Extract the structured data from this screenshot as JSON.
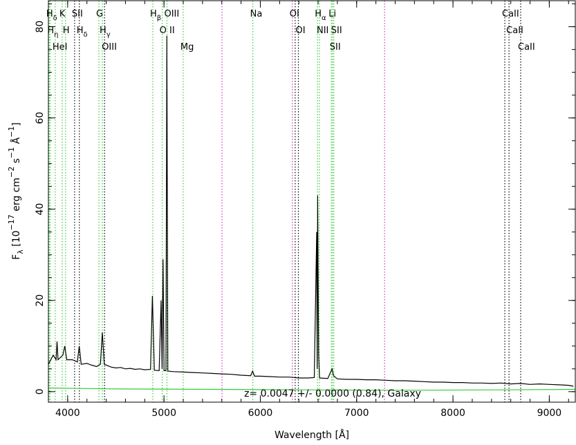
{
  "chart_data": {
    "type": "line",
    "xlabel": [
      "Wavelength ",
      "[Å]"
    ],
    "ylabel": [
      {
        "text": "F"
      },
      {
        "text": "λ",
        "shift": "sub"
      },
      {
        "text": " [10"
      },
      {
        "text": "−17",
        "shift": "sup"
      },
      {
        "text": " erg cm"
      },
      {
        "text": "−2",
        "shift": "sup"
      },
      {
        "text": " s"
      },
      {
        "text": "−1",
        "shift": "sup"
      },
      {
        "text": " Å"
      },
      {
        "text": "−1",
        "shift": "sup"
      },
      {
        "text": "]"
      }
    ],
    "annotation": "z= 0.0047 +/- 0.0000 (0.84), Galaxy",
    "xlim": [
      3800,
      9270
    ],
    "ylim": [
      -2.3,
      85.7
    ],
    "xticks": [
      4000,
      5000,
      6000,
      7000,
      8000,
      9000
    ],
    "yticks": [
      0,
      20,
      40,
      60,
      80
    ],
    "series": [
      {
        "name": "flux",
        "color": "#000000",
        "x": [
          3800,
          3850,
          3880,
          3890,
          3900,
          3950,
          3970,
          3990,
          4050,
          4100,
          4120,
          4140,
          4200,
          4250,
          4300,
          4340,
          4360,
          4380,
          4450,
          4500,
          4550,
          4600,
          4650,
          4700,
          4750,
          4800,
          4860,
          4880,
          4900,
          4950,
          4970,
          4980,
          4990,
          5000,
          5020,
          5030,
          5040,
          5100,
          5200,
          5300,
          5400,
          5500,
          5600,
          5700,
          5800,
          5900,
          5920,
          5940,
          6000,
          6100,
          6200,
          6300,
          6400,
          6500,
          6560,
          6585,
          6590,
          6595,
          6605,
          6615,
          6700,
          6745,
          6760,
          6800,
          6900,
          7000,
          7100,
          7200,
          7300,
          7400,
          7500,
          7600,
          7700,
          7800,
          7900,
          8000,
          8100,
          8200,
          8300,
          8400,
          8500,
          8600,
          8700,
          8800,
          8900,
          9000,
          9100,
          9200,
          9250
        ],
        "values": [
          6,
          8,
          7,
          11,
          7,
          8,
          10,
          7,
          7,
          6.5,
          10,
          6,
          6.2,
          5.8,
          5.5,
          6,
          13,
          6,
          5.4,
          5.2,
          5.3,
          5,
          5.1,
          4.9,
          5,
          4.8,
          4.9,
          21,
          4.7,
          4.6,
          20,
          5,
          29,
          4.6,
          4.6,
          78,
          4.5,
          4.4,
          4.3,
          4.2,
          4.1,
          4,
          3.9,
          3.8,
          3.6,
          3.5,
          4.5,
          3.4,
          3.4,
          3.3,
          3.2,
          3.2,
          3,
          3,
          3.1,
          35,
          5,
          43,
          8,
          3,
          2.9,
          5,
          3.5,
          2.8,
          2.7,
          2.7,
          2.6,
          2.6,
          2.5,
          2.4,
          2.4,
          2.3,
          2.2,
          2.1,
          2.1,
          2,
          2,
          1.9,
          1.9,
          1.8,
          1.9,
          1.7,
          1.8,
          1.6,
          1.7,
          1.6,
          1.5,
          1.4,
          1.2
        ]
      },
      {
        "name": "error",
        "color": "#33cc33",
        "x": [
          3800,
          4500,
          5500,
          6500,
          7500,
          8500,
          9270
        ],
        "values": [
          0.8,
          0.6,
          0.5,
          0.4,
          0.3,
          0.4,
          0.5
        ]
      }
    ],
    "lines": [
      {
        "x": 3806,
        "color": "#33cc33",
        "label": "H",
        "sub": "δ"
      },
      {
        "x": 3817,
        "color": "#33cc33",
        "label": "H",
        "sub": "η"
      },
      {
        "x": 3871,
        "color": "#33cc33",
        "label": "HeI"
      },
      {
        "x": 3943,
        "color": "#33cc33",
        "label": "K"
      },
      {
        "x": 3978,
        "color": "#33cc33",
        "label": "H"
      },
      {
        "x": 4072,
        "color": "#000000",
        "label": "SII"
      },
      {
        "x": 4121,
        "color": "#000000",
        "label": "H",
        "sub": "δ"
      },
      {
        "x": 4324,
        "color": "#33cc33",
        "label": "G"
      },
      {
        "x": 4360,
        "color": "#33cc33",
        "label": "H",
        "sub": "γ"
      },
      {
        "x": 4383,
        "color": "#000000",
        "label": "OIII"
      },
      {
        "x": 4884,
        "color": "#33cc33",
        "label": "H",
        "sub": "β"
      },
      {
        "x": 4982,
        "color": "#33cc33",
        "label": "O II"
      },
      {
        "x": 5031,
        "color": "#33cc33",
        "label": "OIII"
      },
      {
        "x": 5199,
        "color": "#33cc33",
        "label": "Mg"
      },
      {
        "x": 5602,
        "color": "#cc33cc"
      },
      {
        "x": 5922,
        "color": "#33cc33",
        "label": "Na"
      },
      {
        "x": 6332,
        "color": "#cc33cc",
        "label": "OI"
      },
      {
        "x": 6362,
        "color": "#000000"
      },
      {
        "x": 6395,
        "color": "#000000",
        "label": "OI"
      },
      {
        "x": 6594,
        "color": "#33cc33",
        "label": "H",
        "sub": "α"
      },
      {
        "x": 6614,
        "color": "#33cc33",
        "label": "NII"
      },
      {
        "x": 6738,
        "color": "#33cc33",
        "label": "Li"
      },
      {
        "x": 6749,
        "color": "#33cc33",
        "label": "SII"
      },
      {
        "x": 6763,
        "color": "#33cc33",
        "label": "SII"
      },
      {
        "x": 7290,
        "color": "#cc33cc"
      },
      {
        "x": 8538,
        "color": "#000000",
        "label": "CaII"
      },
      {
        "x": 8582,
        "color": "#000000",
        "label": "CaII"
      },
      {
        "x": 8703,
        "color": "#000000",
        "label": "CaII"
      }
    ]
  }
}
